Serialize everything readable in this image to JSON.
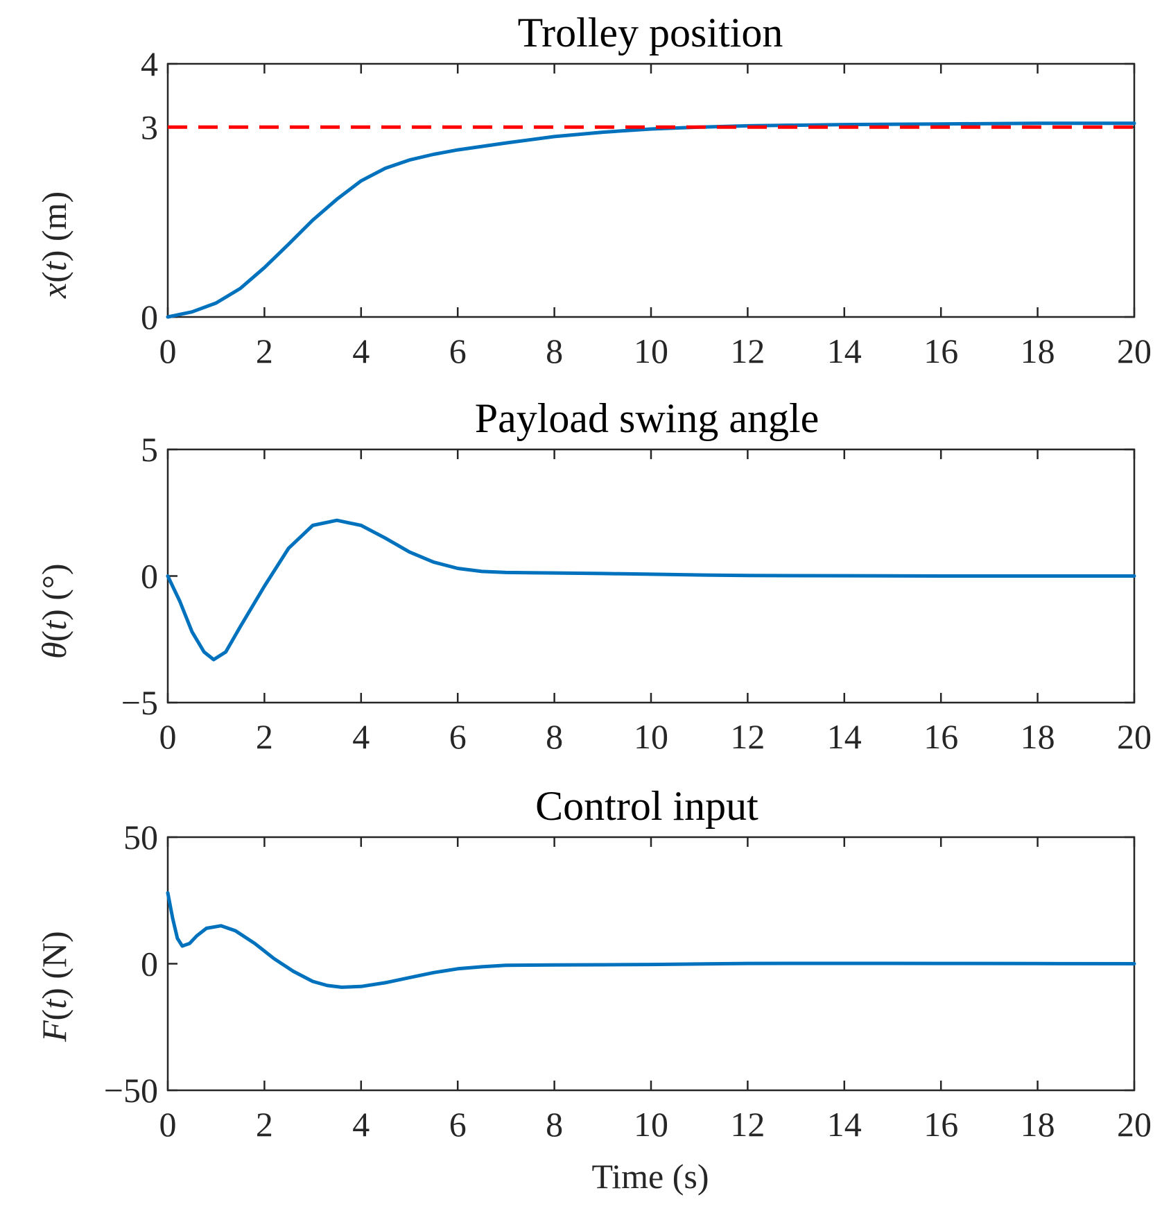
{
  "colors": {
    "series": "#0072BD",
    "reference": "#FF0000",
    "axis": "#262626"
  },
  "chart_data": [
    {
      "type": "line",
      "title": "Trolley position",
      "xlabel": "",
      "ylabel": "x(t) (m)",
      "xlim": [
        0,
        20
      ],
      "ylim": [
        0,
        4
      ],
      "xticks": [
        "0",
        "2",
        "4",
        "6",
        "8",
        "10",
        "12",
        "14",
        "16",
        "18",
        "20"
      ],
      "yticks": [
        "0",
        "3",
        "4"
      ],
      "series": [
        {
          "name": "x(t)",
          "style": "solid",
          "color": "#0072BD",
          "x": [
            0,
            0.5,
            1,
            1.5,
            2,
            2.5,
            3,
            3.5,
            4,
            4.5,
            5,
            5.5,
            6,
            7,
            8,
            9,
            10,
            11,
            12,
            14,
            16,
            18,
            20
          ],
          "y": [
            0,
            0.08,
            0.22,
            0.45,
            0.78,
            1.15,
            1.53,
            1.86,
            2.15,
            2.35,
            2.48,
            2.57,
            2.64,
            2.75,
            2.85,
            2.92,
            2.97,
            3.0,
            3.02,
            3.04,
            3.05,
            3.06,
            3.06
          ]
        },
        {
          "name": "x_ref",
          "style": "dashed",
          "color": "#FF0000",
          "x": [
            0,
            20
          ],
          "y": [
            3,
            3
          ]
        }
      ]
    },
    {
      "type": "line",
      "title": "Payload swing angle",
      "xlabel": "",
      "ylabel": "θ(t) (°)",
      "xlim": [
        0,
        20
      ],
      "ylim": [
        -5,
        5
      ],
      "xticks": [
        "0",
        "2",
        "4",
        "6",
        "8",
        "10",
        "12",
        "14",
        "16",
        "18",
        "20"
      ],
      "yticks": [
        "−5",
        "0",
        "5"
      ],
      "series": [
        {
          "name": "theta(t)",
          "style": "solid",
          "color": "#0072BD",
          "x": [
            0,
            0.25,
            0.5,
            0.75,
            0.95,
            1.2,
            1.5,
            2,
            2.5,
            3,
            3.5,
            4,
            4.5,
            5,
            5.5,
            6,
            6.5,
            7,
            8,
            9,
            10,
            11,
            12,
            14,
            16,
            18,
            20
          ],
          "y": [
            0,
            -1.0,
            -2.2,
            -3.0,
            -3.3,
            -3.0,
            -2.0,
            -0.4,
            1.1,
            2.0,
            2.2,
            2.0,
            1.5,
            0.95,
            0.55,
            0.3,
            0.18,
            0.14,
            0.12,
            0.1,
            0.07,
            0.04,
            0.02,
            0.01,
            0,
            0,
            0
          ]
        }
      ]
    },
    {
      "type": "line",
      "title": "Control input",
      "xlabel": "Time (s)",
      "ylabel": "F(t) (N)",
      "xlim": [
        0,
        20
      ],
      "ylim": [
        -50,
        50
      ],
      "xticks": [
        "0",
        "2",
        "4",
        "6",
        "8",
        "10",
        "12",
        "14",
        "16",
        "18",
        "20"
      ],
      "yticks": [
        "−50",
        "0",
        "50"
      ],
      "series": [
        {
          "name": "F(t)",
          "style": "solid",
          "color": "#0072BD",
          "x": [
            0,
            0.1,
            0.2,
            0.3,
            0.45,
            0.6,
            0.8,
            1.1,
            1.4,
            1.8,
            2.2,
            2.6,
            3,
            3.3,
            3.6,
            4,
            4.5,
            5,
            5.5,
            6,
            6.5,
            7,
            8,
            9,
            10,
            12,
            14,
            16,
            18,
            20
          ],
          "y": [
            28,
            18,
            10,
            7,
            8,
            11,
            14,
            15,
            13,
            8,
            2,
            -3,
            -7,
            -8.6,
            -9.3,
            -9,
            -7.5,
            -5.5,
            -3.5,
            -2,
            -1.2,
            -0.6,
            -0.5,
            -0.4,
            -0.3,
            0.1,
            0.15,
            0.1,
            0.05,
            0
          ]
        }
      ]
    }
  ]
}
